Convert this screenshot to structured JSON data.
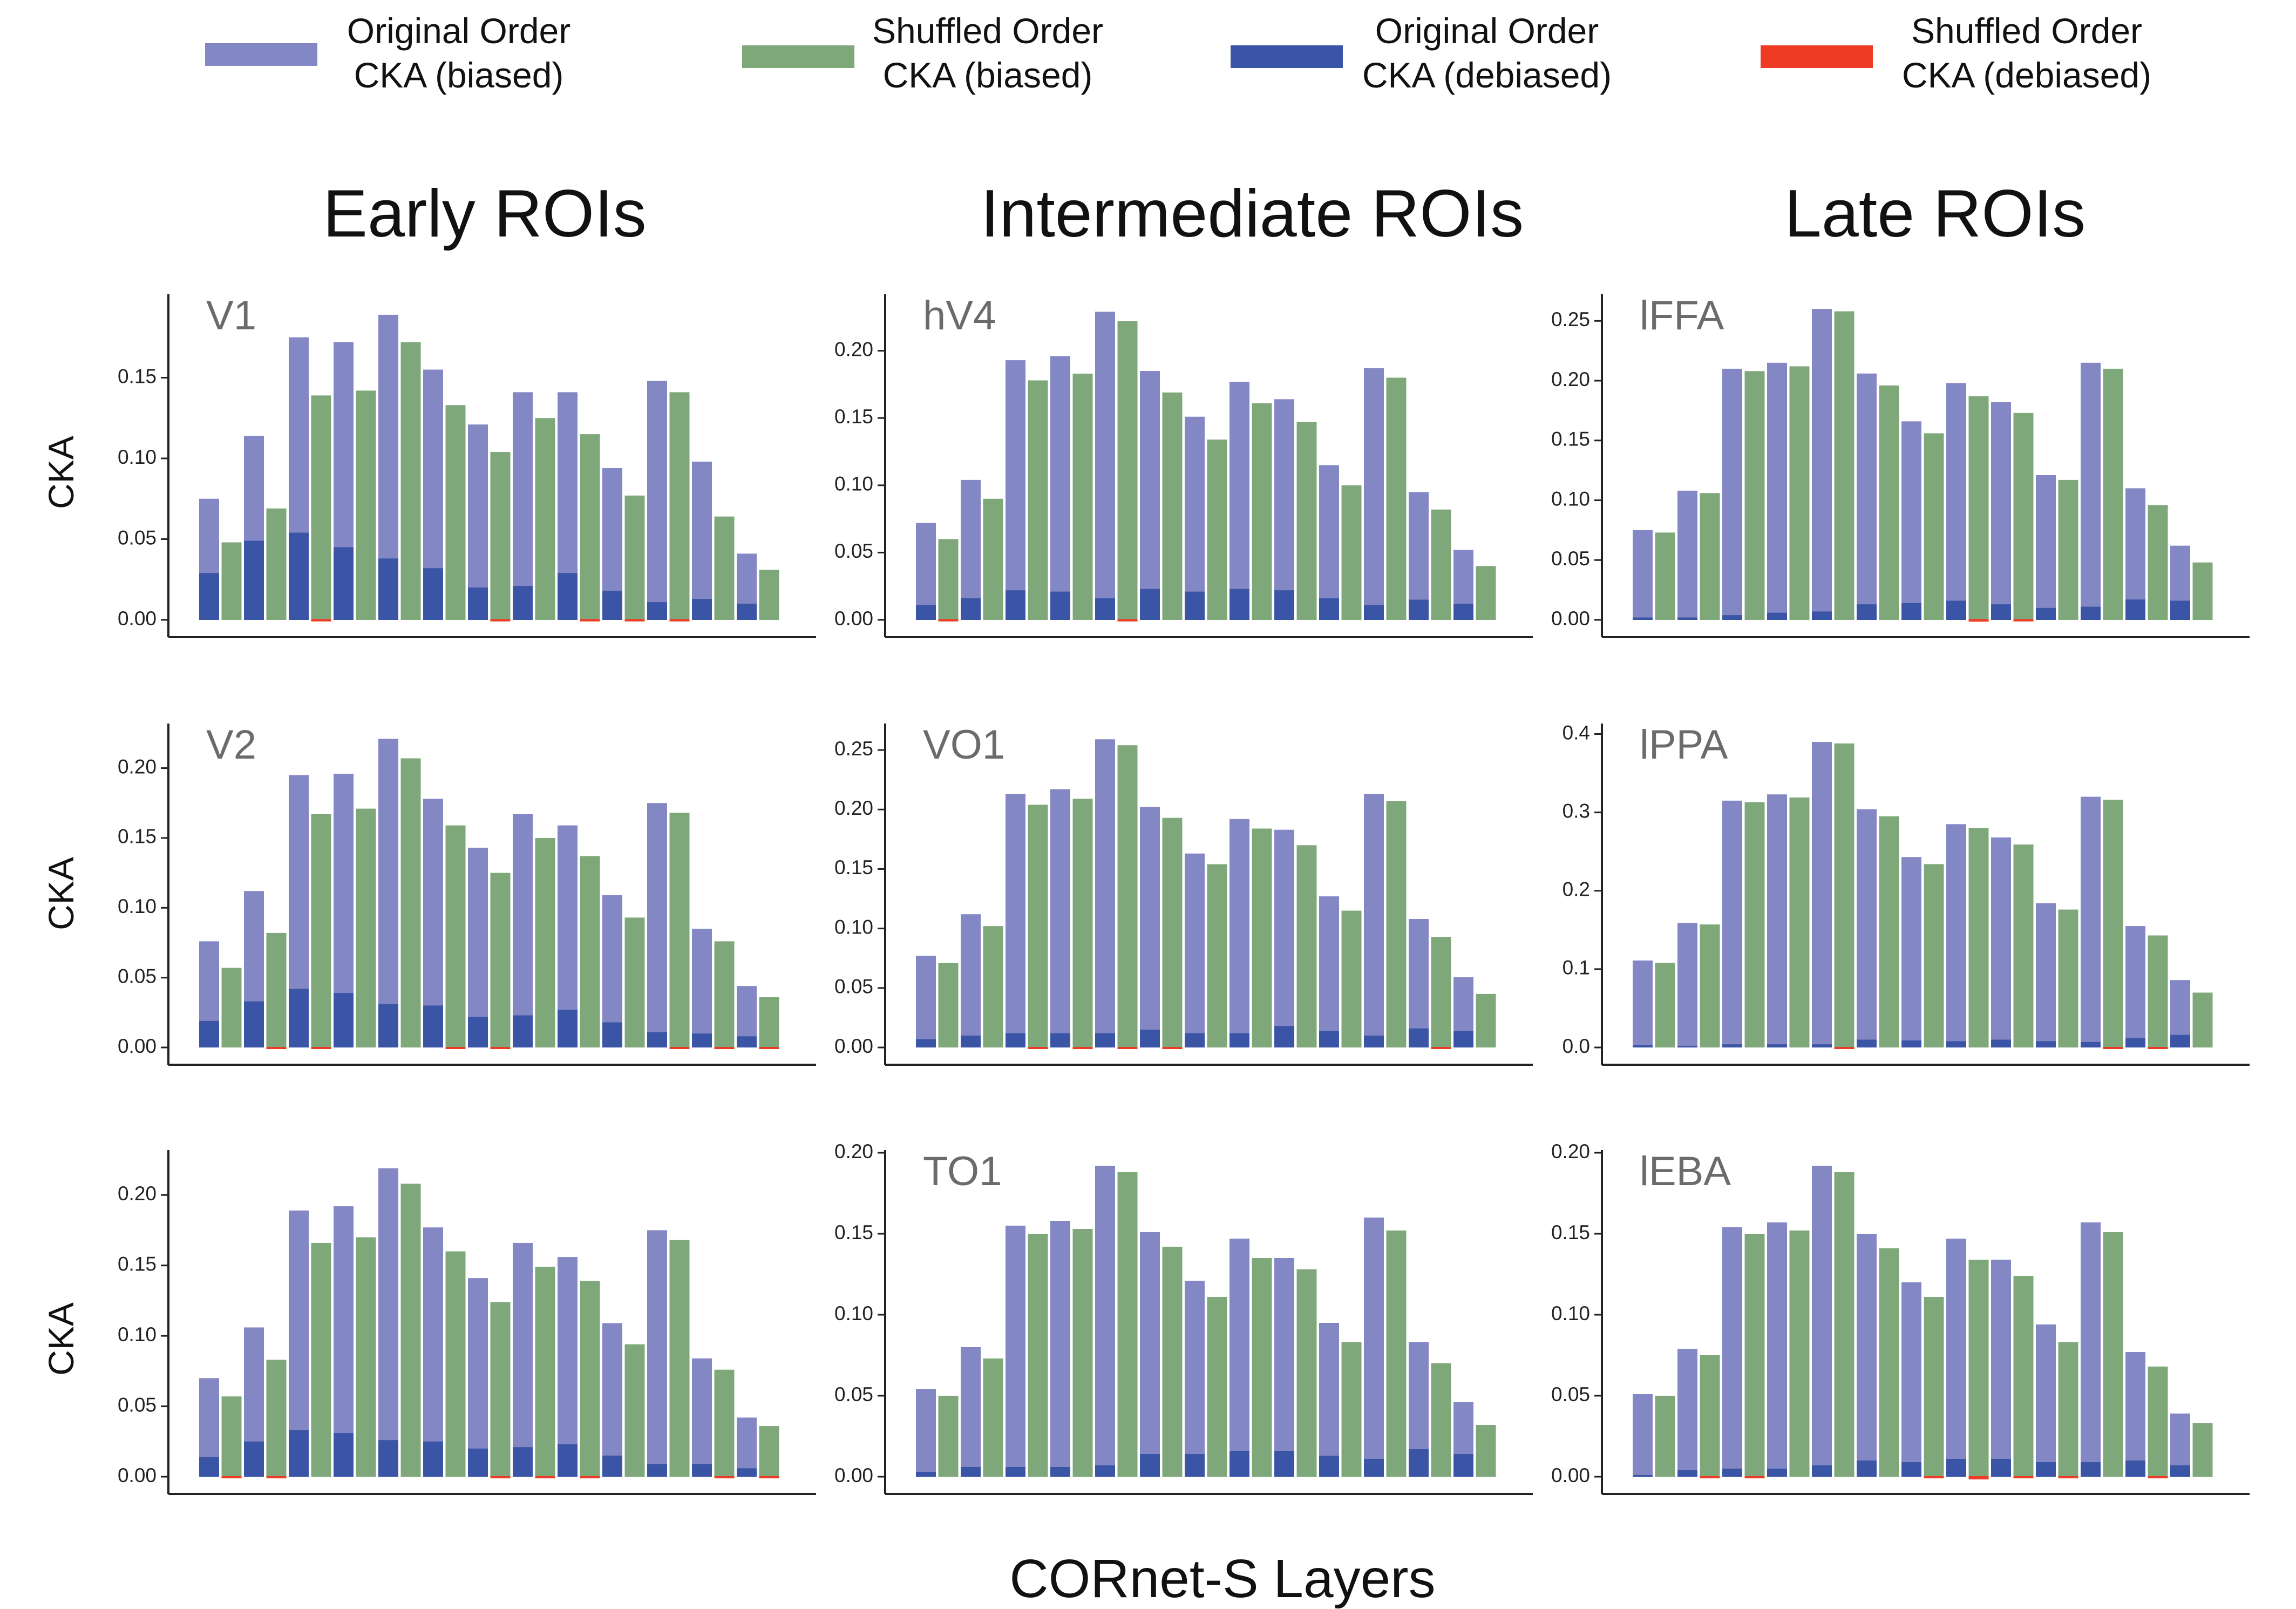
{
  "legend": [
    {
      "line1": "Original Order",
      "line2": "CKA (biased)",
      "color": "#8387c4"
    },
    {
      "line1": "Shuffled Order",
      "line2": "CKA (biased)",
      "color": "#7ea87a"
    },
    {
      "line1": "Original Order",
      "line2": "CKA (debiased)",
      "color": "#3a55a5"
    },
    {
      "line1": "Shuffled Order",
      "line2": "CKA (debiased)",
      "color": "#ee3b24"
    }
  ],
  "column_titles": [
    "Early ROIs",
    "Intermediate ROIs",
    "Late ROIs"
  ],
  "xlabel": "CORnet-S Layers",
  "ylabel": "CKA",
  "colors": {
    "orig_biased": "#8387c4",
    "shuf_biased": "#7ea87a",
    "orig_debiased": "#3a55a5",
    "shuf_debiased": "#ee3b24"
  },
  "chart_data": [
    {
      "type": "bar",
      "row": 0,
      "col": 0,
      "panel_label": "V1",
      "ylim": [
        0,
        0.2
      ],
      "yticks": [
        0,
        0.05,
        0.1,
        0.15
      ],
      "ytick_labels": [
        "0.00",
        "0.05",
        "0.10",
        "0.15"
      ],
      "series": [
        {
          "name": "Original Order CKA (biased)",
          "values": [
            0.075,
            0.114,
            0.175,
            0.172,
            0.189,
            0.155,
            0.121,
            0.141,
            0.141,
            0.094,
            0.148,
            0.098,
            0.041
          ]
        },
        {
          "name": "Shuffled Order CKA (biased)",
          "values": [
            0.048,
            0.069,
            0.139,
            0.142,
            0.172,
            0.133,
            0.104,
            0.125,
            0.115,
            0.077,
            0.141,
            0.064,
            0.031
          ]
        },
        {
          "name": "Original Order CKA (debiased)",
          "values": [
            0.029,
            0.049,
            0.054,
            0.045,
            0.038,
            0.032,
            0.02,
            0.021,
            0.029,
            0.018,
            0.011,
            0.013,
            0.01
          ]
        },
        {
          "name": "Shuffled Order CKA (debiased)",
          "values": [
            0.0,
            0.0,
            -0.001,
            0.0,
            0.0,
            0.0,
            -0.001,
            0.0,
            -0.001,
            -0.001,
            -0.001,
            0.0,
            0.0
          ]
        }
      ]
    },
    {
      "type": "bar",
      "row": 0,
      "col": 1,
      "panel_label": "hV4",
      "ylim": [
        0,
        0.24
      ],
      "yticks": [
        0,
        0.05,
        0.1,
        0.15,
        0.2
      ],
      "ytick_labels": [
        "0.00",
        "0.05",
        "0.10",
        "0.15",
        "0.20"
      ],
      "series": [
        {
          "name": "Original Order CKA (biased)",
          "values": [
            0.072,
            0.104,
            0.193,
            0.196,
            0.229,
            0.185,
            0.151,
            0.177,
            0.164,
            0.115,
            0.187,
            0.095,
            0.052
          ]
        },
        {
          "name": "Shuffled Order CKA (biased)",
          "values": [
            0.06,
            0.09,
            0.178,
            0.183,
            0.222,
            0.169,
            0.134,
            0.161,
            0.147,
            0.1,
            0.18,
            0.082,
            0.04
          ]
        },
        {
          "name": "Original Order CKA (debiased)",
          "values": [
            0.011,
            0.016,
            0.022,
            0.021,
            0.016,
            0.023,
            0.021,
            0.023,
            0.022,
            0.016,
            0.011,
            0.015,
            0.012
          ]
        },
        {
          "name": "Shuffled Order CKA (debiased)",
          "values": [
            -0.001,
            0.0,
            0.0,
            0.0,
            -0.001,
            0.0,
            0.0,
            0.0,
            0.0,
            0.0,
            0.0,
            0.0,
            0.0
          ]
        }
      ]
    },
    {
      "type": "bar",
      "row": 0,
      "col": 2,
      "panel_label": "lFFA",
      "ylim": [
        0,
        0.27
      ],
      "yticks": [
        0,
        0.05,
        0.1,
        0.15,
        0.2,
        0.25
      ],
      "ytick_labels": [
        "0.00",
        "0.05",
        "0.10",
        "0.15",
        "0.20",
        "0.25"
      ],
      "series": [
        {
          "name": "Original Order CKA (biased)",
          "values": [
            0.075,
            0.108,
            0.21,
            0.215,
            0.26,
            0.206,
            0.166,
            0.198,
            0.182,
            0.121,
            0.215,
            0.11,
            0.062
          ]
        },
        {
          "name": "Shuffled Order CKA (biased)",
          "values": [
            0.073,
            0.106,
            0.208,
            0.212,
            0.258,
            0.196,
            0.156,
            0.187,
            0.173,
            0.117,
            0.21,
            0.096,
            0.048
          ]
        },
        {
          "name": "Original Order CKA (debiased)",
          "values": [
            0.002,
            0.002,
            0.004,
            0.006,
            0.007,
            0.013,
            0.014,
            0.016,
            0.013,
            0.01,
            0.011,
            0.017,
            0.016
          ]
        },
        {
          "name": "Shuffled Order CKA (debiased)",
          "values": [
            0.0,
            0.0,
            0.0,
            0.0,
            0.0,
            0.0,
            0.0,
            -0.002,
            -0.001,
            0.0,
            0.0,
            0.0,
            0.0
          ]
        }
      ]
    },
    {
      "type": "bar",
      "row": 1,
      "col": 0,
      "panel_label": "V2",
      "ylim": [
        0,
        0.23
      ],
      "yticks": [
        0,
        0.05,
        0.1,
        0.15,
        0.2
      ],
      "ytick_labels": [
        "0.00",
        "0.05",
        "0.10",
        "0.15",
        "0.20"
      ],
      "series": [
        {
          "name": "Original Order CKA (biased)",
          "values": [
            0.076,
            0.112,
            0.195,
            0.196,
            0.221,
            0.178,
            0.143,
            0.167,
            0.159,
            0.109,
            0.175,
            0.085,
            0.044
          ]
        },
        {
          "name": "Shuffled Order CKA (biased)",
          "values": [
            0.057,
            0.082,
            0.167,
            0.171,
            0.207,
            0.159,
            0.125,
            0.15,
            0.137,
            0.093,
            0.168,
            0.076,
            0.036
          ]
        },
        {
          "name": "Original Order CKA (debiased)",
          "values": [
            0.019,
            0.033,
            0.042,
            0.039,
            0.031,
            0.03,
            0.022,
            0.023,
            0.027,
            0.018,
            0.011,
            0.01,
            0.008
          ]
        },
        {
          "name": "Shuffled Order CKA (debiased)",
          "values": [
            0.0,
            -0.001,
            -0.001,
            0.0,
            0.0,
            -0.001,
            -0.001,
            0.0,
            0.0,
            0.0,
            -0.001,
            -0.001,
            -0.001
          ]
        }
      ]
    },
    {
      "type": "bar",
      "row": 1,
      "col": 1,
      "panel_label": "VO1",
      "ylim": [
        0,
        0.27
      ],
      "yticks": [
        0,
        0.05,
        0.1,
        0.15,
        0.2,
        0.25
      ],
      "ytick_labels": [
        "0.00",
        "0.05",
        "0.10",
        "0.15",
        "0.20",
        "0.25"
      ],
      "series": [
        {
          "name": "Original Order CKA (biased)",
          "values": [
            0.077,
            0.112,
            0.213,
            0.217,
            0.259,
            0.202,
            0.163,
            0.192,
            0.183,
            0.127,
            0.213,
            0.108,
            0.059
          ]
        },
        {
          "name": "Shuffled Order CKA (biased)",
          "values": [
            0.071,
            0.102,
            0.204,
            0.209,
            0.254,
            0.193,
            0.154,
            0.184,
            0.17,
            0.115,
            0.207,
            0.093,
            0.045
          ]
        },
        {
          "name": "Original Order CKA (debiased)",
          "values": [
            0.007,
            0.01,
            0.012,
            0.012,
            0.012,
            0.015,
            0.012,
            0.012,
            0.018,
            0.014,
            0.01,
            0.016,
            0.014
          ]
        },
        {
          "name": "Shuffled Order CKA (debiased)",
          "values": [
            0.0,
            0.0,
            -0.001,
            -0.001,
            -0.001,
            -0.001,
            0.0,
            0.0,
            0.0,
            0.0,
            0.0,
            -0.001,
            0.0
          ]
        }
      ]
    },
    {
      "type": "bar",
      "row": 1,
      "col": 2,
      "panel_label": "lPPA",
      "ylim": [
        0,
        0.41
      ],
      "yticks": [
        0,
        0.1,
        0.2,
        0.3,
        0.4
      ],
      "ytick_labels": [
        "0.0",
        "0.1",
        "0.2",
        "0.3",
        "0.4"
      ],
      "series": [
        {
          "name": "Original Order CKA (biased)",
          "values": [
            0.111,
            0.159,
            0.315,
            0.323,
            0.39,
            0.304,
            0.243,
            0.285,
            0.268,
            0.184,
            0.32,
            0.155,
            0.086
          ]
        },
        {
          "name": "Shuffled Order CKA (biased)",
          "values": [
            0.108,
            0.157,
            0.313,
            0.319,
            0.388,
            0.295,
            0.234,
            0.28,
            0.259,
            0.176,
            0.316,
            0.143,
            0.07
          ]
        },
        {
          "name": "Original Order CKA (debiased)",
          "values": [
            0.003,
            0.002,
            0.004,
            0.004,
            0.004,
            0.01,
            0.009,
            0.008,
            0.01,
            0.008,
            0.007,
            0.012,
            0.016
          ]
        },
        {
          "name": "Shuffled Order CKA (debiased)",
          "values": [
            0.0,
            0.0,
            0.0,
            0.0,
            -0.001,
            0.0,
            0.0,
            0.0,
            0.0,
            0.0,
            -0.001,
            -0.002,
            0.0
          ]
        }
      ]
    },
    {
      "type": "bar",
      "row": 2,
      "col": 0,
      "panel_label": "",
      "ylim": [
        0,
        0.23
      ],
      "yticks": [
        0,
        0.05,
        0.1,
        0.15,
        0.2
      ],
      "ytick_labels": [
        "0.00",
        "0.05",
        "0.10",
        "0.15",
        "0.20"
      ],
      "series": [
        {
          "name": "Original Order CKA (biased)",
          "values": [
            0.07,
            0.106,
            0.189,
            0.192,
            0.219,
            0.177,
            0.141,
            0.166,
            0.156,
            0.109,
            0.175,
            0.084,
            0.042
          ]
        },
        {
          "name": "Shuffled Order CKA (biased)",
          "values": [
            0.057,
            0.083,
            0.166,
            0.17,
            0.208,
            0.16,
            0.124,
            0.149,
            0.139,
            0.094,
            0.168,
            0.076,
            0.036
          ]
        },
        {
          "name": "Original Order CKA (debiased)",
          "values": [
            0.014,
            0.025,
            0.033,
            0.031,
            0.026,
            0.025,
            0.02,
            0.021,
            0.023,
            0.015,
            0.009,
            0.009,
            0.006
          ]
        },
        {
          "name": "Shuffled Order CKA (debiased)",
          "values": [
            -0.001,
            -0.001,
            0.0,
            0.0,
            0.0,
            0.0,
            -0.001,
            -0.001,
            -0.001,
            0.0,
            0.0,
            -0.001,
            -0.001
          ]
        }
      ]
    },
    {
      "type": "bar",
      "row": 2,
      "col": 1,
      "panel_label": "TO1",
      "ylim": [
        0,
        0.2
      ],
      "yticks": [
        0,
        0.05,
        0.1,
        0.15,
        0.2
      ],
      "ytick_labels": [
        "0.00",
        "0.05",
        "0.10",
        "0.15",
        "0.20"
      ],
      "series": [
        {
          "name": "Original Order CKA (biased)",
          "values": [
            0.054,
            0.08,
            0.155,
            0.158,
            0.192,
            0.151,
            0.121,
            0.147,
            0.135,
            0.095,
            0.16,
            0.083,
            0.046
          ]
        },
        {
          "name": "Shuffled Order CKA (biased)",
          "values": [
            0.05,
            0.073,
            0.15,
            0.153,
            0.188,
            0.142,
            0.111,
            0.135,
            0.128,
            0.083,
            0.152,
            0.07,
            0.032
          ]
        },
        {
          "name": "Original Order CKA (debiased)",
          "values": [
            0.003,
            0.006,
            0.006,
            0.006,
            0.007,
            0.014,
            0.014,
            0.016,
            0.016,
            0.013,
            0.011,
            0.017,
            0.014
          ]
        },
        {
          "name": "Shuffled Order CKA (debiased)",
          "values": [
            0.0,
            0.0,
            0.0,
            0.0,
            0.0,
            0.0,
            0.0,
            0.0,
            0.0,
            0.0,
            0.0,
            0.0,
            0.0
          ]
        }
      ]
    },
    {
      "type": "bar",
      "row": 2,
      "col": 2,
      "panel_label": "lEBA",
      "ylim": [
        0,
        0.2
      ],
      "yticks": [
        0,
        0.05,
        0.1,
        0.15,
        0.2
      ],
      "ytick_labels": [
        "0.00",
        "0.05",
        "0.10",
        "0.15",
        "0.20"
      ],
      "series": [
        {
          "name": "Original Order CKA (biased)",
          "values": [
            0.051,
            0.079,
            0.154,
            0.157,
            0.192,
            0.15,
            0.12,
            0.147,
            0.134,
            0.094,
            0.157,
            0.077,
            0.039
          ]
        },
        {
          "name": "Shuffled Order CKA (biased)",
          "values": [
            0.05,
            0.075,
            0.15,
            0.152,
            0.188,
            0.141,
            0.111,
            0.134,
            0.124,
            0.083,
            0.151,
            0.068,
            0.033
          ]
        },
        {
          "name": "Original Order CKA (debiased)",
          "values": [
            0.001,
            0.004,
            0.005,
            0.005,
            0.007,
            0.01,
            0.009,
            0.011,
            0.011,
            0.009,
            0.009,
            0.01,
            0.007
          ]
        },
        {
          "name": "Shuffled Order CKA (debiased)",
          "values": [
            0.0,
            -0.001,
            -0.001,
            0.0,
            0.0,
            0.0,
            -0.001,
            -0.002,
            -0.001,
            -0.001,
            0.0,
            -0.001,
            0.0
          ]
        }
      ]
    }
  ]
}
